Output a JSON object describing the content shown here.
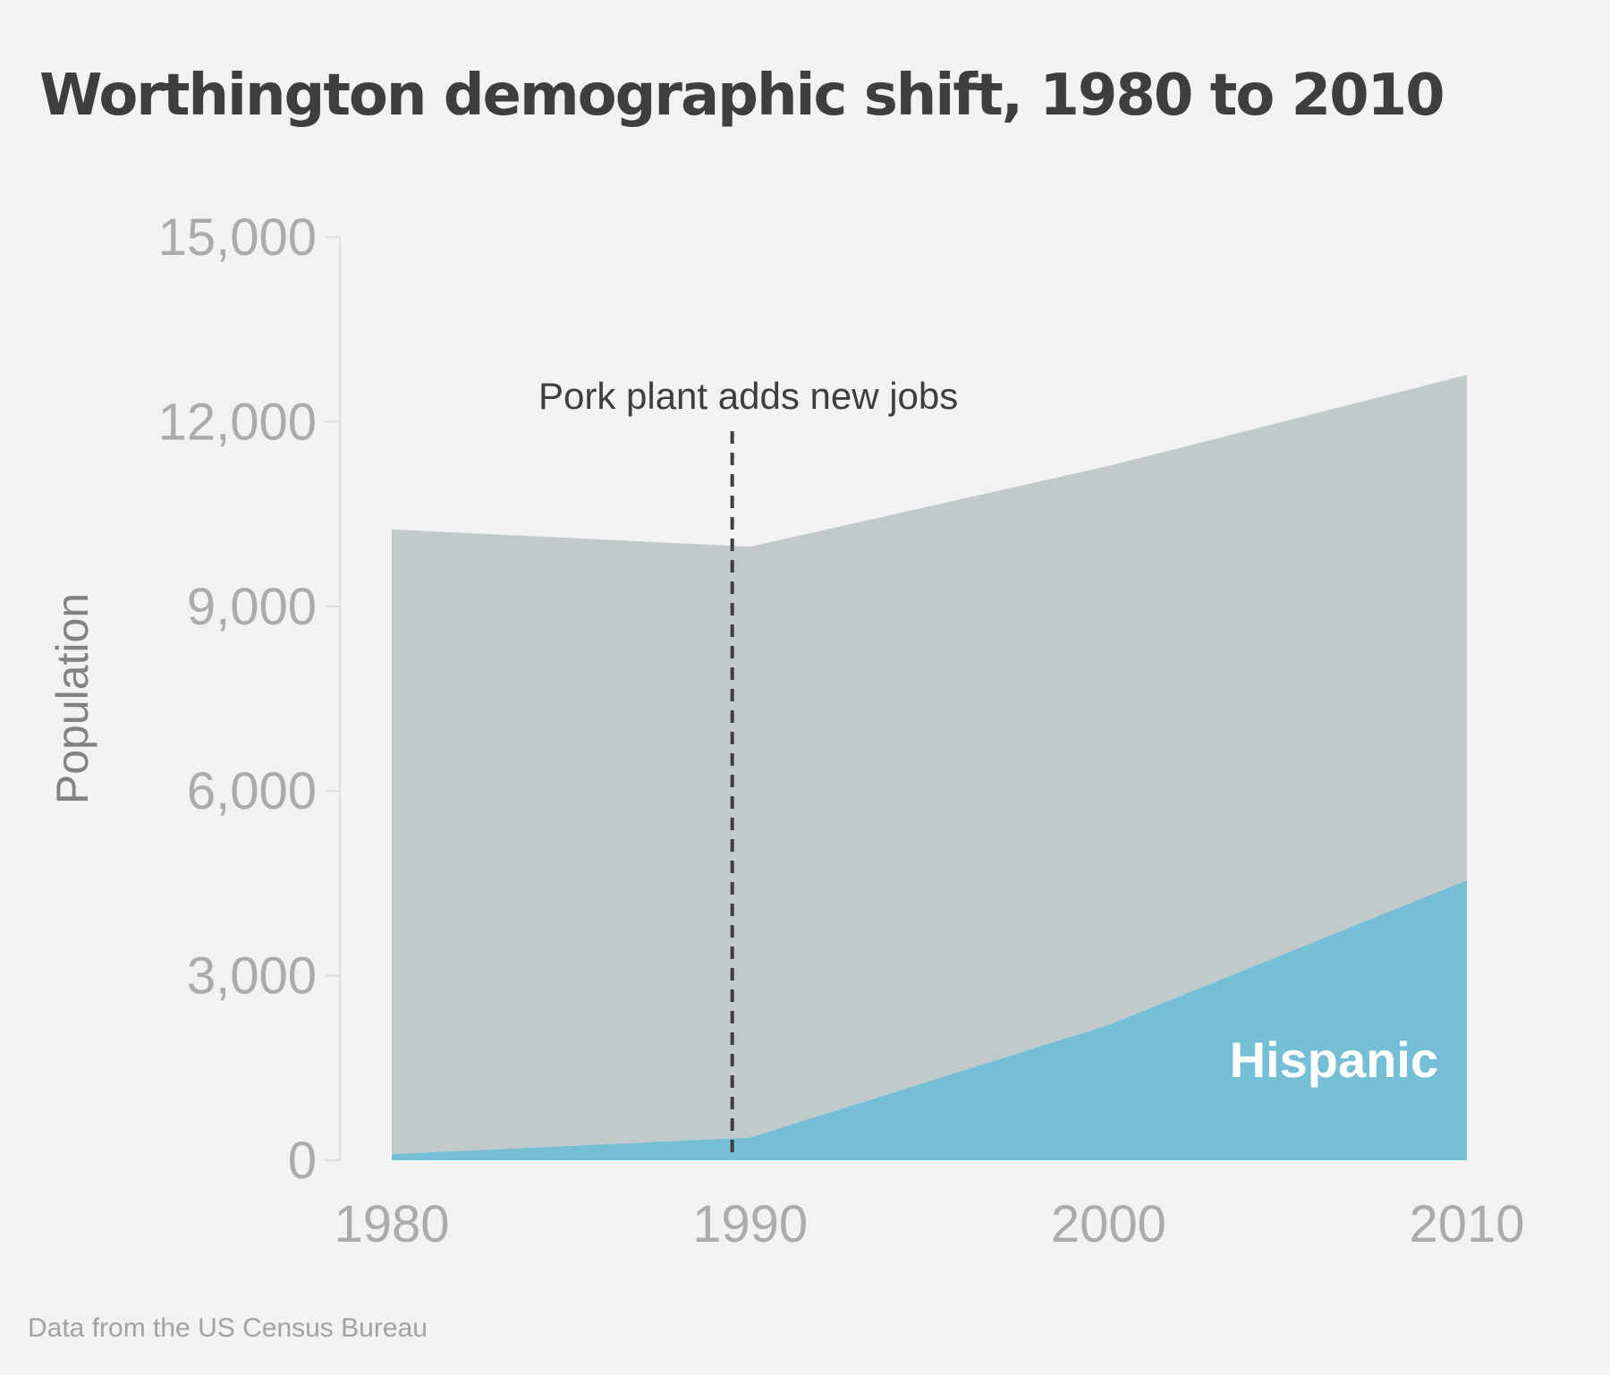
{
  "title": "Worthington demographic shift, 1980 to 2010",
  "source": "Data from the US Census Bureau",
  "chart_data": {
    "type": "area",
    "stacked": true,
    "x": [
      1980,
      1990,
      2000,
      2010
    ],
    "xlabel": "",
    "ylabel": "Population",
    "ylim": [
      0,
      15000
    ],
    "yticks": [
      0,
      3000,
      6000,
      9000,
      12000,
      15000
    ],
    "ytick_labels": [
      "0",
      "3,000",
      "6,000",
      "9,000",
      "12,000",
      "15,000"
    ],
    "xtick_labels": [
      "1980",
      "1990",
      "2000",
      "2010"
    ],
    "series": [
      {
        "name": "Hispanic",
        "values": [
          100,
          370,
          2200,
          4550
        ],
        "color": "#75bfd6",
        "labeled": true
      },
      {
        "name": "",
        "values": [
          10150,
          9600,
          9080,
          8210
        ],
        "color": "#c1c9cb",
        "labeled": false
      }
    ],
    "totals": [
      10250,
      9970,
      11280,
      12760
    ],
    "annotations": [
      {
        "text": "Pork plant adds new jobs",
        "x": 1989.5,
        "style": "dashed-vertical-line"
      }
    ],
    "grid": false
  }
}
